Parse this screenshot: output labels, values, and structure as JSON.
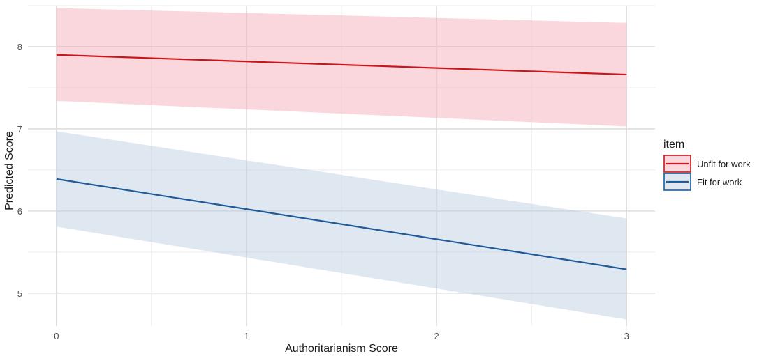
{
  "chart_data": {
    "type": "line",
    "xlabel": "Authoritarianism Score",
    "ylabel": "Predicted Score",
    "xlim": [
      -0.15,
      3.15
    ],
    "ylim": [
      4.6,
      8.5
    ],
    "x_ticks": [
      0,
      1,
      2,
      3
    ],
    "x_minor_ticks": [
      0.5,
      1.5,
      2.5
    ],
    "y_ticks": [
      5,
      6,
      7,
      8
    ],
    "y_minor_ticks": [
      4.5,
      5.5,
      6.5,
      7.5,
      8.5
    ],
    "grid": true,
    "legend": {
      "title": "item",
      "position": "right"
    },
    "series": [
      {
        "name": "Unfit for work",
        "color": "#c8161d",
        "fill_color": "#f4a6b1",
        "x": [
          0,
          3
        ],
        "y": [
          7.9,
          7.66
        ],
        "ci_lower": [
          7.34,
          7.03
        ],
        "ci_upper": [
          8.47,
          8.29
        ]
      },
      {
        "name": "Fit for work",
        "color": "#1f5a99",
        "fill_color": "#b9cce0",
        "x": [
          0,
          3
        ],
        "y": [
          6.39,
          5.29
        ],
        "ci_lower": [
          5.81,
          4.68
        ],
        "ci_upper": [
          6.97,
          5.91
        ]
      }
    ]
  }
}
